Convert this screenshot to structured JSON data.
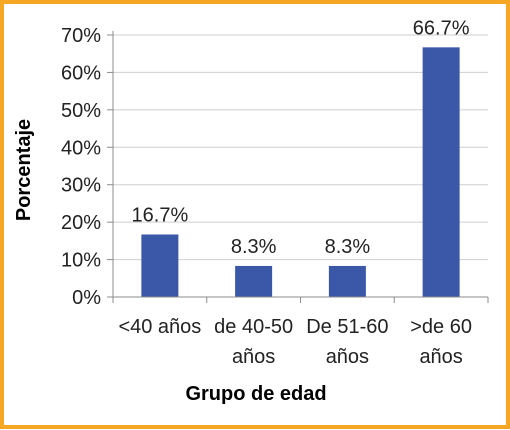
{
  "chart_data": {
    "type": "bar",
    "xlabel": "Grupo de edad",
    "ylabel": "Porcentaje",
    "categories": [
      [
        "<40 años"
      ],
      [
        "de 40-50",
        "años"
      ],
      [
        "De 51-60",
        "años"
      ],
      [
        ">de 60",
        "años"
      ]
    ],
    "values": [
      16.7,
      8.3,
      8.3,
      66.7
    ],
    "data_labels": [
      "16.7%",
      "8.3%",
      "8.3%",
      "66.7%"
    ],
    "ylim": [
      0,
      70
    ],
    "yticks": [
      0,
      10,
      20,
      30,
      40,
      50,
      60,
      70
    ],
    "ytick_labels": [
      "0%",
      "10%",
      "20%",
      "30%",
      "40%",
      "50%",
      "60%",
      "70%"
    ],
    "grid": true,
    "legend": "none",
    "colors": {
      "bar": "#3a57a8",
      "grid": "#cfcfcf",
      "axis": "#8c8c8c",
      "text": "#222222",
      "frame": "#f5a623"
    }
  }
}
